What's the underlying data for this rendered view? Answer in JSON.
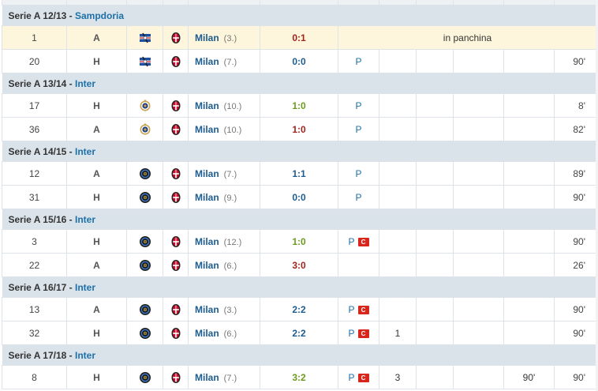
{
  "colors": {
    "win": "#6c9a1d",
    "draw": "#1d5c8e",
    "loss": "#a2231d",
    "club_link": "#1d70a8",
    "captain_badge": "#d9261c"
  },
  "captain_label": "C",
  "seasons": [
    {
      "season": "Serie A 12/13 - ",
      "club": "Sampdoria",
      "club_crest": "sampdoria-crest-icon",
      "rows": [
        {
          "md": "1",
          "venue": "A",
          "opp": "Milan",
          "rank": "(3.)",
          "result": "0:1",
          "outcome": "loss",
          "status": "in panchina",
          "pos": "",
          "captain": false,
          "g": "",
          "a": "",
          "sub_out": "",
          "min": "",
          "highlight": true
        },
        {
          "md": "20",
          "venue": "H",
          "opp": "Milan",
          "rank": "(7.)",
          "result": "0:0",
          "outcome": "draw",
          "status": "",
          "pos": "P",
          "captain": false,
          "g": "",
          "a": "",
          "sub_out": "",
          "min": "90'"
        }
      ]
    },
    {
      "season": "Serie A 13/14 - ",
      "club": "Inter",
      "club_crest": "inter-old-crest-icon",
      "rows": [
        {
          "md": "17",
          "venue": "H",
          "opp": "Milan",
          "rank": "(10.)",
          "result": "1:0",
          "outcome": "win",
          "pos": "P",
          "captain": false,
          "g": "",
          "a": "",
          "sub_out": "",
          "min": "8'"
        },
        {
          "md": "36",
          "venue": "A",
          "opp": "Milan",
          "rank": "(10.)",
          "result": "1:0",
          "outcome": "loss",
          "pos": "P",
          "captain": false,
          "g": "",
          "a": "",
          "sub_out": "",
          "min": "82'"
        }
      ]
    },
    {
      "season": "Serie A 14/15 - ",
      "club": "Inter",
      "club_crest": "inter-crest-icon",
      "rows": [
        {
          "md": "12",
          "venue": "A",
          "opp": "Milan",
          "rank": "(7.)",
          "result": "1:1",
          "outcome": "draw",
          "pos": "P",
          "captain": false,
          "g": "",
          "a": "",
          "sub_out": "",
          "min": "89'"
        },
        {
          "md": "31",
          "venue": "H",
          "opp": "Milan",
          "rank": "(9.)",
          "result": "0:0",
          "outcome": "draw",
          "pos": "P",
          "captain": false,
          "g": "",
          "a": "",
          "sub_out": "",
          "min": "90'"
        }
      ]
    },
    {
      "season": "Serie A 15/16 - ",
      "club": "Inter",
      "club_crest": "inter-crest-icon",
      "rows": [
        {
          "md": "3",
          "venue": "H",
          "opp": "Milan",
          "rank": "(12.)",
          "result": "1:0",
          "outcome": "win",
          "pos": "P",
          "captain": true,
          "g": "",
          "a": "",
          "sub_out": "",
          "min": "90'"
        },
        {
          "md": "22",
          "venue": "A",
          "opp": "Milan",
          "rank": "(6.)",
          "result": "3:0",
          "outcome": "loss",
          "pos": "",
          "captain": false,
          "g": "",
          "a": "",
          "sub_out": "",
          "min": "26'"
        }
      ]
    },
    {
      "season": "Serie A 16/17 - ",
      "club": "Inter",
      "club_crest": "inter-crest-icon",
      "rows": [
        {
          "md": "13",
          "venue": "A",
          "opp": "Milan",
          "rank": "(3.)",
          "result": "2:2",
          "outcome": "draw",
          "pos": "P",
          "captain": true,
          "g": "",
          "a": "",
          "sub_out": "",
          "min": "90'"
        },
        {
          "md": "32",
          "venue": "H",
          "opp": "Milan",
          "rank": "(6.)",
          "result": "2:2",
          "outcome": "draw",
          "pos": "P",
          "captain": true,
          "g": "1",
          "a": "",
          "sub_out": "",
          "min": "90'"
        }
      ]
    },
    {
      "season": "Serie A 17/18 - ",
      "club": "Inter",
      "club_crest": "inter-crest-icon",
      "rows": [
        {
          "md": "8",
          "venue": "H",
          "opp": "Milan",
          "rank": "(7.)",
          "result": "3:2",
          "outcome": "win",
          "pos": "P",
          "captain": true,
          "g": "3",
          "a": "",
          "sub_out": "90'",
          "min": "90'"
        }
      ]
    }
  ]
}
